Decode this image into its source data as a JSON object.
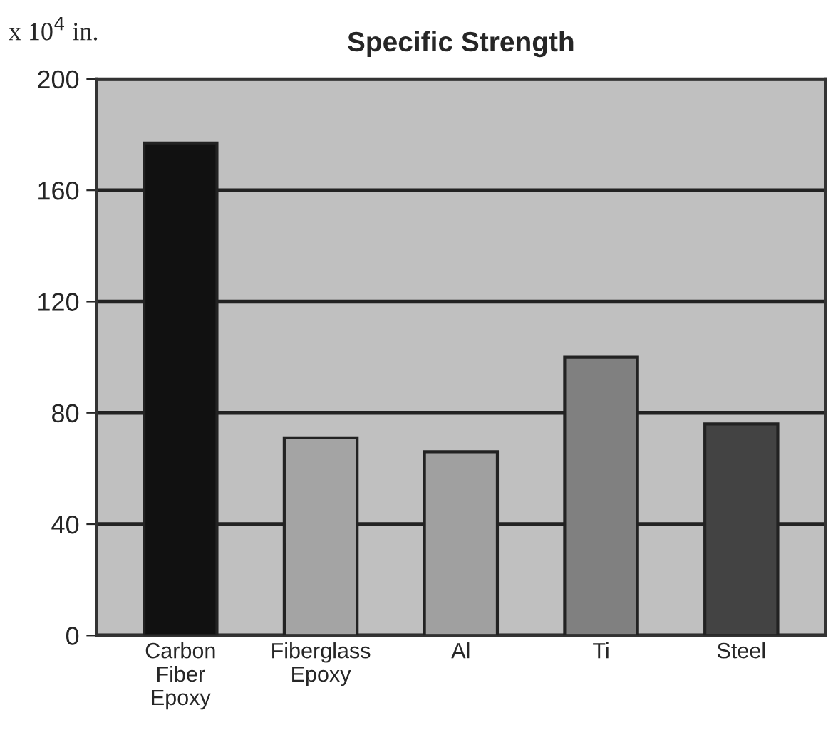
{
  "chart_data": {
    "type": "bar",
    "title": "Specific Strength",
    "annotations": [
      "x 10$^{4}$ in."
    ],
    "categories": [
      "Carbon\nFiber\nEpoxy",
      "Fiberglass\nEpoxy",
      "Al",
      "Ti",
      "Steel"
    ],
    "values": [
      177,
      71,
      66,
      100,
      76
    ],
    "colors": [
      "#111111",
      "#a4a4a4",
      "#a0a0a0",
      "#808080",
      "#434343"
    ],
    "ylim": [
      0,
      200
    ],
    "yticks": [
      0,
      40,
      80,
      120,
      160,
      200
    ],
    "grid": "y"
  }
}
